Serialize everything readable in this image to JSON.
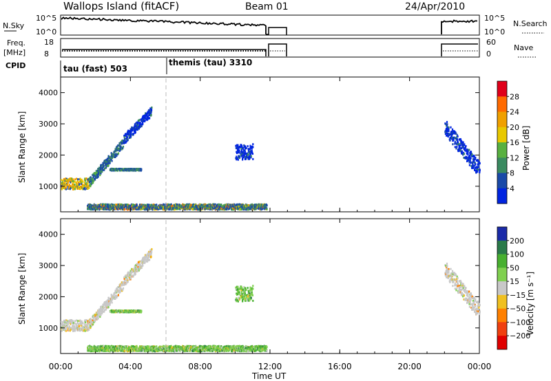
{
  "header": {
    "station": "Wallops Island (fitACF)",
    "beam": "Beam 01",
    "date": "24/Apr/2010"
  },
  "top_panels": {
    "nsky_label": "N.Sky",
    "nsky_ticks": [
      "10^5",
      "10^0"
    ],
    "nsearch_label": "N.Search",
    "nsearch_ticks": [
      "10^5",
      "10^0"
    ],
    "freq_label": "Freq.",
    "freq_unit": "[MHz]",
    "freq_ticks": [
      "18",
      "8"
    ],
    "nave_label": "Nave",
    "nave_ticks": [
      "60",
      "0"
    ],
    "cpid_label": "CPID",
    "cpid_segments": [
      "tau (fast) 503",
      "themis (tau) 3310"
    ]
  },
  "chart_data": [
    {
      "type": "heatmap",
      "name": "power",
      "ylabel": "Slant Range [km]",
      "xlabel": "Time UT",
      "x_range_hours": [
        0,
        24
      ],
      "ylim_km": [
        180,
        4500
      ],
      "yticks": [
        "1000",
        "2000",
        "3000",
        "4000"
      ],
      "xticks": [
        "00:00",
        "04:00",
        "08:00",
        "12:00",
        "16:00",
        "20:00",
        "00:00"
      ],
      "colorbar": {
        "label": "Power [dB]",
        "ticks": [
          "28",
          "24",
          "20",
          "16",
          "12",
          "8",
          "4"
        ],
        "colors": [
          "#e0001a",
          "#ff6a00",
          "#f0a000",
          "#e8c800",
          "#58b040",
          "#3a8a60",
          "#1a4aa8",
          "#0024e0"
        ]
      },
      "echo_regions": [
        {
          "t0": 0.0,
          "t1": 1.6,
          "r0": 900,
          "r1": 1250,
          "level": "high"
        },
        {
          "t0": 1.6,
          "t1": 3.6,
          "r0": 1100,
          "r1": 2400,
          "level": "medium"
        },
        {
          "t0": 3.6,
          "t1": 5.2,
          "r0": 2500,
          "r1": 3400,
          "level": "low"
        },
        {
          "t0": 2.8,
          "t1": 4.6,
          "r0": 1500,
          "r1": 1560,
          "level": "medium"
        },
        {
          "t0": 1.5,
          "t1": 11.8,
          "r0": 250,
          "r1": 420,
          "level": "mixed"
        },
        {
          "t0": 10.0,
          "t1": 11.0,
          "r0": 1850,
          "r1": 2350,
          "level": "low"
        },
        {
          "t0": 22.0,
          "t1": 24.0,
          "r0": 1500,
          "r1": 2900,
          "level": "low"
        }
      ]
    },
    {
      "type": "heatmap",
      "name": "velocity",
      "ylabel": "Slant Range [km]",
      "xlabel": "Time UT",
      "x_range_hours": [
        0,
        24
      ],
      "ylim_km": [
        180,
        4500
      ],
      "yticks": [
        "1000",
        "2000",
        "3000",
        "4000"
      ],
      "xticks": [
        "00:00",
        "04:00",
        "08:00",
        "12:00",
        "16:00",
        "20:00",
        "00:00"
      ],
      "colorbar": {
        "label": "Velocity [m s⁻¹]",
        "ticks": [
          "200",
          "100",
          "50",
          "15",
          "-15",
          "-50",
          "-100",
          "-200"
        ],
        "colors": [
          "#1a2aa8",
          "#2a7a4a",
          "#48b030",
          "#80d050",
          "#c8c8c8",
          "#f0c020",
          "#ff8000",
          "#f04010",
          "#e00000"
        ]
      },
      "echo_regions": [
        {
          "t0": 0.0,
          "t1": 1.6,
          "r0": 900,
          "r1": 1250,
          "level": "ground"
        },
        {
          "t0": 1.6,
          "t1": 3.6,
          "r0": 1100,
          "r1": 2400,
          "level": "ground"
        },
        {
          "t0": 3.6,
          "t1": 5.2,
          "r0": 2500,
          "r1": 3400,
          "level": "ground"
        },
        {
          "t0": 2.8,
          "t1": 4.6,
          "r0": 1500,
          "r1": 1560,
          "level": "positive"
        },
        {
          "t0": 1.5,
          "t1": 11.8,
          "r0": 250,
          "r1": 420,
          "level": "positive"
        },
        {
          "t0": 10.0,
          "t1": 11.0,
          "r0": 1850,
          "r1": 2350,
          "level": "positive"
        },
        {
          "t0": 22.0,
          "t1": 24.0,
          "r0": 1500,
          "r1": 2900,
          "level": "ground"
        }
      ]
    }
  ]
}
